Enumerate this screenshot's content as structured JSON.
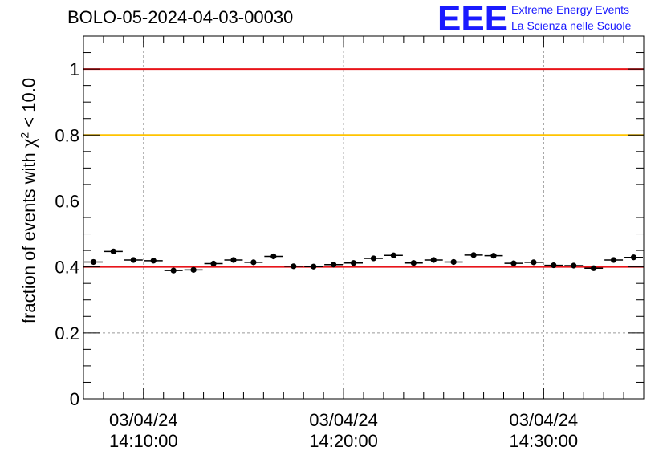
{
  "title": "BOLO-05-2024-04-03-00030",
  "logo": {
    "mark": "EEE",
    "line1": "Extreme Energy Events",
    "line2": "La Scienza nelle Scuole",
    "color": "#1a1aff"
  },
  "chart_data": {
    "type": "scatter",
    "ylabel_prefix": "fraction of events with ",
    "ylabel_symbol": "χ",
    "ylabel_exp": "2",
    "ylabel_suffix": " < 10.0",
    "ylim": [
      0,
      1.1
    ],
    "y_ticks": [
      0,
      0.2,
      0.4,
      0.6,
      0.8,
      1
    ],
    "y_tick_labels": [
      "0",
      "0.2",
      "0.4",
      "0.6",
      "0.8",
      "1"
    ],
    "x_range_minutes": [
      14.0,
      42.0
    ],
    "x_major_ticks_minutes": [
      17,
      27,
      37
    ],
    "x_tick_labels": [
      [
        "03/04/24",
        "14:10:00"
      ],
      [
        "03/04/24",
        "14:20:00"
      ],
      [
        "03/04/24",
        "14:30:00"
      ]
    ],
    "x_minor_ticks_minutes": [
      15,
      16,
      18,
      19,
      20,
      21,
      22,
      23,
      24,
      25,
      26,
      28,
      29,
      30,
      31,
      32,
      33,
      34,
      35,
      36,
      38,
      39,
      40,
      41
    ],
    "grid": true,
    "bin_width_minutes": 1,
    "x_centers_minutes": [
      14.5,
      15.5,
      16.5,
      17.5,
      18.5,
      19.5,
      20.5,
      21.5,
      22.5,
      23.5,
      24.5,
      25.5,
      26.5,
      27.5,
      28.5,
      29.5,
      30.5,
      31.5,
      32.5,
      33.5,
      34.5,
      35.5,
      36.5,
      37.5,
      38.5,
      39.5,
      40.5,
      41.5
    ],
    "values": [
      0.415,
      0.447,
      0.421,
      0.419,
      0.389,
      0.391,
      0.41,
      0.421,
      0.414,
      0.432,
      0.402,
      0.401,
      0.407,
      0.412,
      0.426,
      0.435,
      0.412,
      0.421,
      0.415,
      0.436,
      0.434,
      0.411,
      0.414,
      0.405,
      0.404,
      0.396,
      0.421,
      0.429
    ],
    "error": 0.008,
    "reference_lines": [
      {
        "y": 1.0,
        "color": "#e8141a"
      },
      {
        "y": 0.8,
        "color": "#ffc400"
      },
      {
        "y": 0.4,
        "color": "#e8141a"
      }
    ]
  }
}
